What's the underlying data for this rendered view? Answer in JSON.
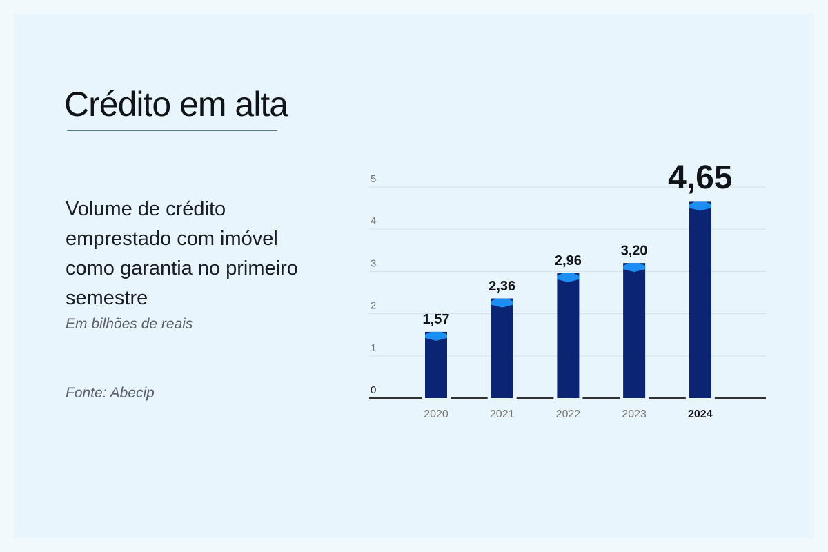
{
  "chart_data": {
    "type": "bar",
    "title": "Crédito em alta",
    "subtitle": "Volume de crédito emprestado com imóvel como garantia no primeiro semestre",
    "unit": "Em bilhões de reais",
    "source": "Fonte: Abecip",
    "categories": [
      "2020",
      "2021",
      "2022",
      "2023",
      "2024"
    ],
    "values": [
      1.57,
      2.36,
      2.96,
      3.2,
      4.65
    ],
    "value_labels": [
      "1,57",
      "2,36",
      "2,96",
      "3,20",
      "4,65"
    ],
    "color": "#0b2572",
    "cap_color": "#1c8ef2",
    "ylim": [
      0,
      5
    ],
    "yticks": [
      0,
      1,
      2,
      3,
      4,
      5
    ],
    "grid": true
  }
}
